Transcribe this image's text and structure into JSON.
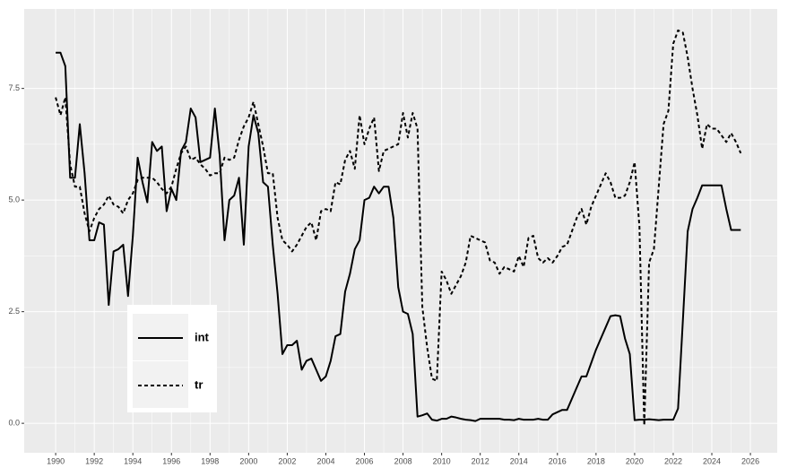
{
  "chart_data": {
    "type": "line",
    "x": [
      1990,
      1990.25,
      1990.5,
      1990.75,
      1991,
      1991.25,
      1991.5,
      1991.75,
      1992,
      1992.25,
      1992.5,
      1992.75,
      1993,
      1993.25,
      1993.5,
      1993.75,
      1994,
      1994.25,
      1994.5,
      1994.75,
      1995,
      1995.25,
      1995.5,
      1995.75,
      1996,
      1996.25,
      1996.5,
      1996.75,
      1997,
      1997.25,
      1997.5,
      1997.75,
      1998,
      1998.25,
      1998.5,
      1998.75,
      1999,
      1999.25,
      1999.5,
      1999.75,
      2000,
      2000.25,
      2000.5,
      2000.75,
      2001,
      2001.25,
      2001.5,
      2001.75,
      2002,
      2002.25,
      2002.5,
      2002.75,
      2003,
      2003.25,
      2003.5,
      2003.75,
      2004,
      2004.25,
      2004.5,
      2004.75,
      2005,
      2005.25,
      2005.5,
      2005.75,
      2006,
      2006.25,
      2006.5,
      2006.75,
      2007,
      2007.25,
      2007.5,
      2007.75,
      2008,
      2008.25,
      2008.5,
      2008.75,
      2009,
      2009.25,
      2009.5,
      2009.75,
      2010,
      2010.25,
      2010.5,
      2010.75,
      2011,
      2011.25,
      2011.5,
      2011.75,
      2012,
      2012.25,
      2012.5,
      2012.75,
      2013,
      2013.25,
      2013.5,
      2013.75,
      2014,
      2014.25,
      2014.5,
      2014.75,
      2015,
      2015.25,
      2015.5,
      2015.75,
      2016,
      2016.25,
      2016.5,
      2016.75,
      2017,
      2017.25,
      2017.5,
      2017.75,
      2018,
      2018.25,
      2018.5,
      2018.75,
      2019,
      2019.25,
      2019.5,
      2019.75,
      2020,
      2020.25,
      2020.5,
      2020.75,
      2021,
      2021.25,
      2021.5,
      2021.75,
      2022,
      2022.25,
      2022.5,
      2022.75,
      2023,
      2023.25,
      2023.5,
      2023.75,
      2024,
      2024.25,
      2024.5,
      2024.75,
      2025,
      2025.25,
      2025.5
    ],
    "series": [
      {
        "name": "int",
        "color": "#000000",
        "linetype": "solid",
        "values": [
          8.3,
          8.3,
          8.0,
          5.5,
          5.5,
          6.7,
          5.6,
          4.1,
          4.1,
          4.5,
          4.45,
          2.65,
          3.85,
          3.9,
          4.0,
          2.85,
          4.2,
          5.95,
          5.4,
          4.95,
          6.3,
          6.1,
          6.2,
          4.75,
          5.25,
          5.0,
          6.1,
          6.3,
          7.05,
          6.85,
          5.85,
          5.9,
          5.95,
          7.05,
          6.0,
          4.1,
          5.0,
          5.1,
          5.5,
          4.0,
          6.2,
          6.9,
          6.5,
          5.4,
          5.3,
          4.0,
          2.9,
          1.55,
          1.75,
          1.75,
          1.85,
          1.2,
          1.4,
          1.45,
          1.2,
          0.95,
          1.05,
          1.4,
          1.95,
          2.0,
          2.95,
          3.35,
          3.9,
          4.1,
          5.0,
          5.05,
          5.3,
          5.15,
          5.3,
          5.3,
          4.6,
          3.05,
          2.5,
          2.45,
          2.0,
          0.15,
          0.18,
          0.22,
          0.08,
          0.06,
          0.1,
          0.1,
          0.15,
          0.13,
          0.1,
          0.08,
          0.07,
          0.05,
          0.1,
          0.1,
          0.1,
          0.1,
          0.1,
          0.08,
          0.08,
          0.07,
          0.1,
          0.08,
          0.08,
          0.08,
          0.1,
          0.08,
          0.08,
          0.2,
          0.25,
          0.3,
          0.3,
          0.55,
          0.8,
          1.05,
          1.05,
          1.35,
          1.65,
          1.9,
          2.15,
          2.4,
          2.42,
          2.4,
          1.9,
          1.55,
          0.07,
          0.08,
          0.08,
          0.09,
          0.08,
          0.07,
          0.08,
          0.08,
          0.08,
          0.33,
          2.3,
          4.3,
          4.8,
          5.05,
          5.33,
          5.33,
          5.33,
          5.33,
          5.33,
          4.8,
          4.33,
          4.33,
          4.33
        ]
      },
      {
        "name": "tr",
        "color": "#000000",
        "linetype": "dashed",
        "values": [
          7.3,
          6.9,
          7.3,
          5.8,
          5.3,
          5.3,
          4.7,
          4.3,
          4.6,
          4.8,
          4.9,
          5.1,
          4.9,
          4.85,
          4.7,
          5.0,
          5.15,
          5.45,
          5.5,
          5.5,
          5.5,
          5.4,
          5.25,
          5.15,
          5.3,
          5.7,
          6.05,
          6.2,
          5.9,
          5.95,
          5.8,
          5.7,
          5.55,
          5.6,
          5.6,
          5.95,
          5.9,
          5.95,
          6.35,
          6.65,
          6.85,
          7.2,
          6.7,
          6.2,
          5.6,
          5.6,
          4.6,
          4.1,
          4.0,
          3.85,
          4.0,
          4.2,
          4.4,
          4.5,
          4.1,
          4.75,
          4.8,
          4.75,
          5.4,
          5.35,
          5.9,
          6.1,
          5.7,
          6.9,
          6.25,
          6.6,
          6.85,
          5.65,
          6.1,
          6.15,
          6.2,
          6.25,
          6.95,
          6.4,
          6.95,
          6.6,
          2.6,
          1.7,
          1.0,
          0.95,
          3.4,
          3.2,
          2.9,
          3.1,
          3.3,
          3.6,
          4.2,
          4.15,
          4.1,
          4.05,
          3.65,
          3.6,
          3.35,
          3.5,
          3.45,
          3.4,
          3.75,
          3.5,
          4.15,
          4.2,
          3.7,
          3.6,
          3.7,
          3.6,
          3.75,
          3.95,
          4.0,
          4.3,
          4.6,
          4.8,
          4.45,
          4.85,
          5.1,
          5.35,
          5.6,
          5.4,
          5.05,
          5.05,
          5.1,
          5.4,
          5.85,
          4.4,
          -0.05,
          3.6,
          3.9,
          5.3,
          6.7,
          7.0,
          8.5,
          8.8,
          8.75,
          8.2,
          7.5,
          6.9,
          6.15,
          6.7,
          6.6,
          6.6,
          6.45,
          6.3,
          6.5,
          6.3,
          6.05
        ]
      }
    ],
    "xlim": [
      1988.37,
      2027.39
    ],
    "xticks": [
      1990,
      1992,
      1994,
      1996,
      1998,
      2000,
      2002,
      2004,
      2006,
      2008,
      2010,
      2012,
      2014,
      2016,
      2018,
      2020,
      2022,
      2024,
      2026
    ],
    "ylim": [
      -0.66,
      9.28
    ],
    "yticks": [
      {
        "value": 0,
        "label": "0.0"
      },
      2.5,
      {
        "value": 5,
        "label": "5.0"
      },
      7.5
    ],
    "grid": true,
    "legend": "bottom-left"
  }
}
